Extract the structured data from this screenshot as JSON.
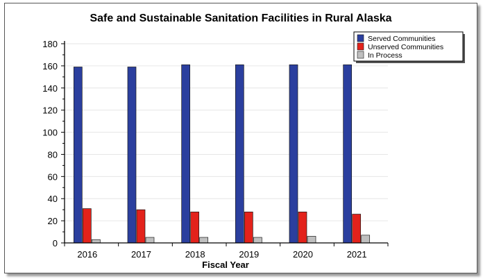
{
  "chart_data": {
    "type": "bar",
    "title": "Safe and Sustainable Sanitation Facilities in Rural Alaska",
    "xlabel": "Fiscal Year",
    "ylabel": "",
    "ylim": [
      0,
      180
    ],
    "yticks": [
      0,
      20,
      40,
      60,
      80,
      100,
      120,
      140,
      160,
      180
    ],
    "grid": true,
    "legend_position": "top-right",
    "categories": [
      "2016",
      "2017",
      "2018",
      "2019",
      "2020",
      "2021"
    ],
    "series": [
      {
        "name": "Served Communities",
        "color": "#2b3f9e",
        "values": [
          159,
          159,
          161,
          161,
          161,
          161
        ]
      },
      {
        "name": "Unserved Communities",
        "color": "#e3221b",
        "values": [
          31,
          30,
          28,
          28,
          28,
          26
        ]
      },
      {
        "name": "In Process",
        "color": "#bfbfbf",
        "values": [
          3,
          5,
          5,
          5,
          6,
          7
        ]
      }
    ]
  }
}
